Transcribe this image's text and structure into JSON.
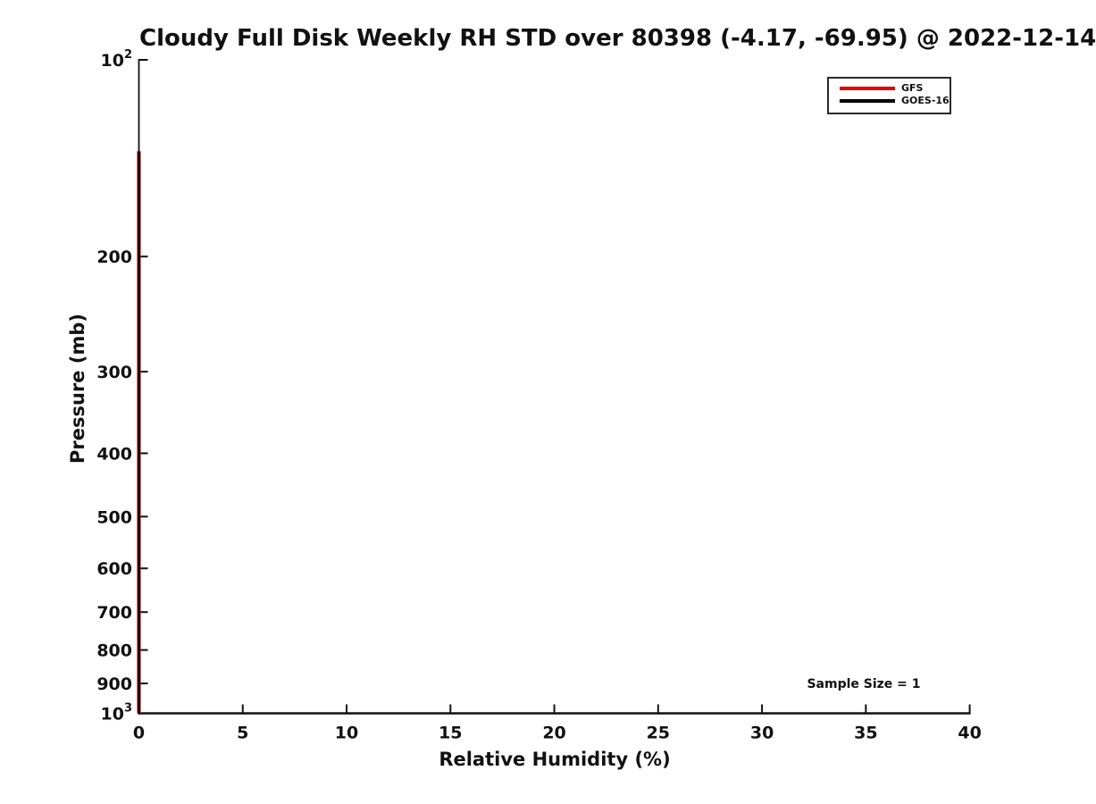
{
  "chart_data": {
    "type": "line",
    "title": "Cloudy Full Disk Weekly RH STD over 80398 (-4.17, -69.95) @ 2022-12-14",
    "xlabel": "Relative Humidity (%)",
    "ylabel": "Pressure (mb)",
    "xlim": [
      0,
      40
    ],
    "ylim": [
      100,
      1000
    ],
    "y_scale": "log",
    "y_inverted": true,
    "grid": false,
    "x_ticks": [
      0,
      5,
      10,
      15,
      20,
      25,
      30,
      35,
      40
    ],
    "y_ticks": [
      {
        "value": 100,
        "label": "10",
        "sup": "2"
      },
      {
        "value": 200,
        "label": "200"
      },
      {
        "value": 300,
        "label": "300"
      },
      {
        "value": 400,
        "label": "400"
      },
      {
        "value": 500,
        "label": "500"
      },
      {
        "value": 600,
        "label": "600"
      },
      {
        "value": 700,
        "label": "700"
      },
      {
        "value": 800,
        "label": "800"
      },
      {
        "value": 900,
        "label": "900"
      },
      {
        "value": 1000,
        "label": "10",
        "sup": "3"
      }
    ],
    "series": [
      {
        "name": "GFS",
        "color": "#cf1010",
        "line_width": 4.2,
        "points": [
          {
            "x": 0,
            "pressure": 138
          },
          {
            "x": 0,
            "pressure": 1000
          }
        ]
      },
      {
        "name": "GOES-16",
        "color": "#000000",
        "line_width": 2.4,
        "points": [
          {
            "x": 0,
            "pressure": 138
          },
          {
            "x": 0,
            "pressure": 1000
          }
        ]
      }
    ],
    "legend": {
      "position": "upper right",
      "entries": [
        {
          "label": "GFS",
          "color": "#cf1010"
        },
        {
          "label": "GOES-16",
          "color": "#000000"
        }
      ]
    },
    "annotation": {
      "text": "Sample Size = 1",
      "x": 35,
      "pressure": 905
    }
  }
}
